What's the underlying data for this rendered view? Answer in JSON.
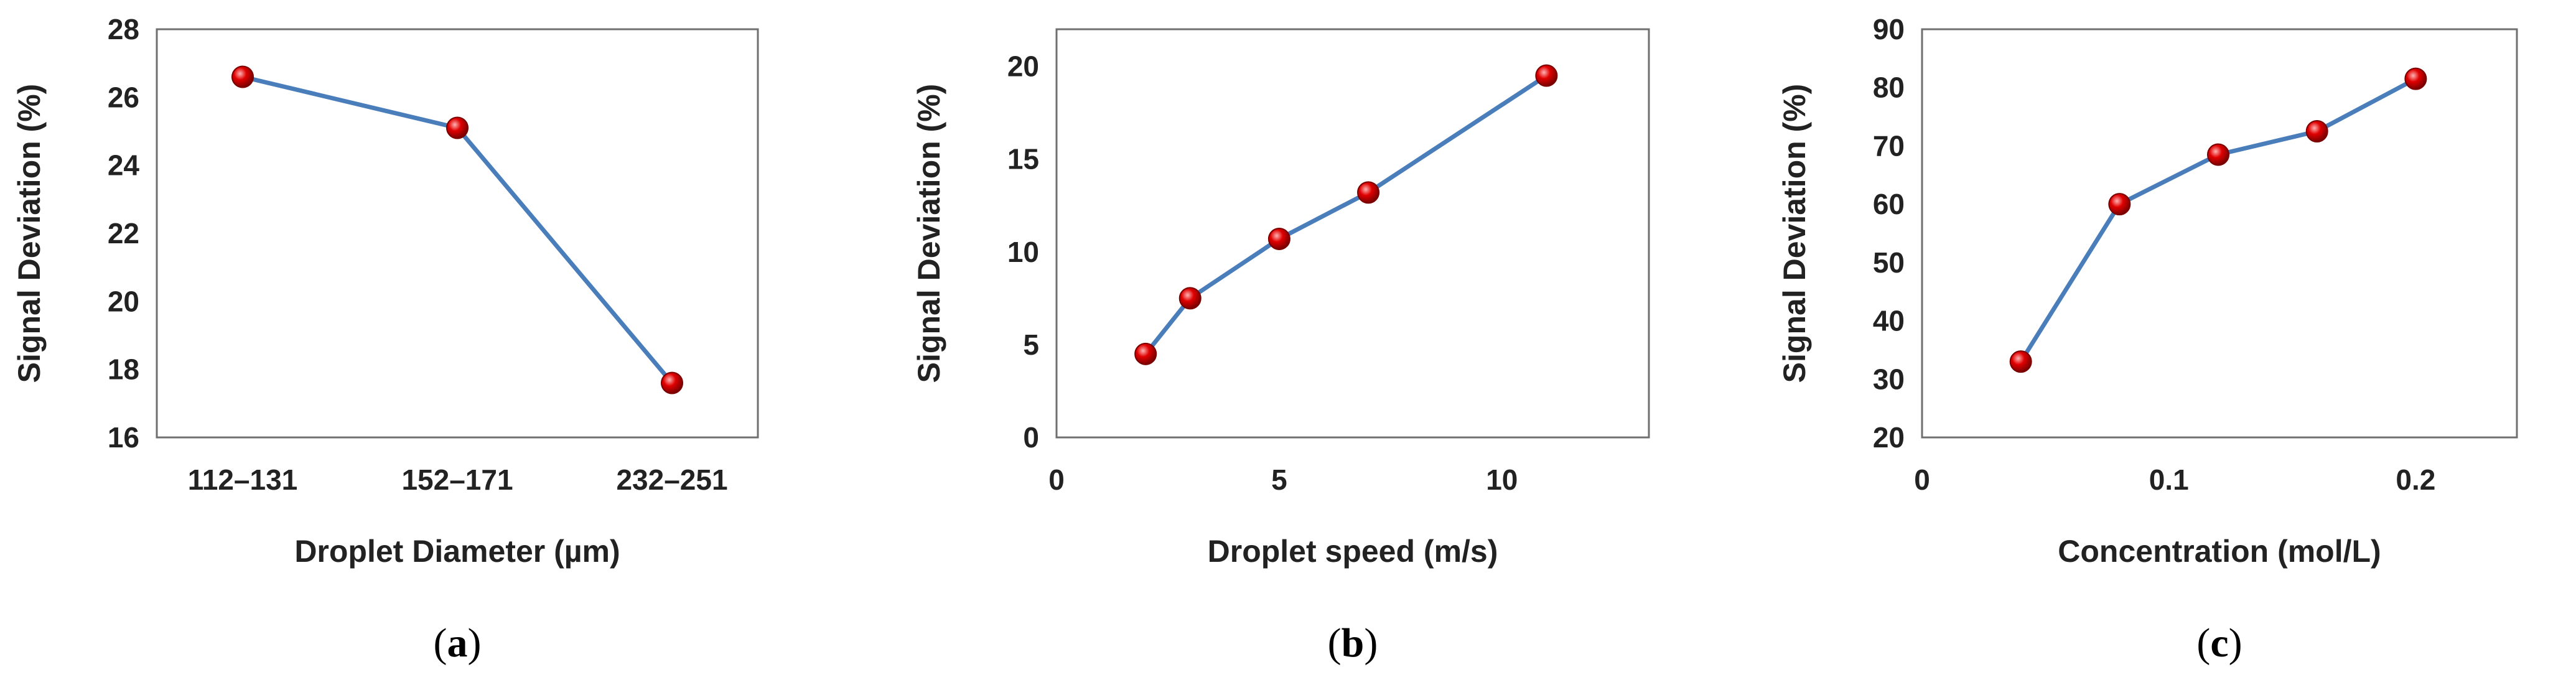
{
  "colors": {
    "line": "#4a7ebb",
    "marker": "#e00000",
    "marker_edge": "#7a0000",
    "frame": "#6f6f6f",
    "text": "#222222"
  },
  "chart_data": [
    {
      "type": "line",
      "panel_label": "a",
      "xlabel": "Droplet Diameter (µm)",
      "ylabel": "Signal Deviation (%)",
      "categories": [
        "112–131",
        "152–171",
        "232–251"
      ],
      "values": [
        26.6,
        25.1,
        17.6
      ],
      "ylim": [
        16,
        28
      ],
      "yticks": [
        16,
        18,
        20,
        22,
        24,
        26,
        28
      ],
      "grid": false,
      "legend": false
    },
    {
      "type": "line",
      "panel_label": "b",
      "xlabel": "Droplet speed (m/s)",
      "ylabel": "Signal Deviation (%)",
      "x": [
        2,
        3,
        5,
        7,
        11
      ],
      "values": [
        4.5,
        7.5,
        10.7,
        13.2,
        19.5
      ],
      "xlim": [
        0,
        13.3
      ],
      "ylim": [
        0,
        22
      ],
      "xticks": [
        0,
        5,
        10
      ],
      "yticks": [
        0,
        5,
        10,
        15,
        20
      ],
      "grid": false,
      "legend": false
    },
    {
      "type": "line",
      "panel_label": "c",
      "xlabel": "Concentration (mol/L)",
      "ylabel": "Signal Deviation (%)",
      "x": [
        0.04,
        0.08,
        0.12,
        0.16,
        0.2
      ],
      "values": [
        33,
        60,
        68.5,
        72.5,
        81.5
      ],
      "xlim": [
        0,
        0.241
      ],
      "ylim": [
        20,
        90
      ],
      "xticks": [
        0,
        0.1,
        0.2
      ],
      "xtick_labels": [
        "0",
        "0.1",
        "0.2"
      ],
      "yticks": [
        20,
        30,
        40,
        50,
        60,
        70,
        80,
        90
      ],
      "grid": false,
      "legend": false
    }
  ]
}
